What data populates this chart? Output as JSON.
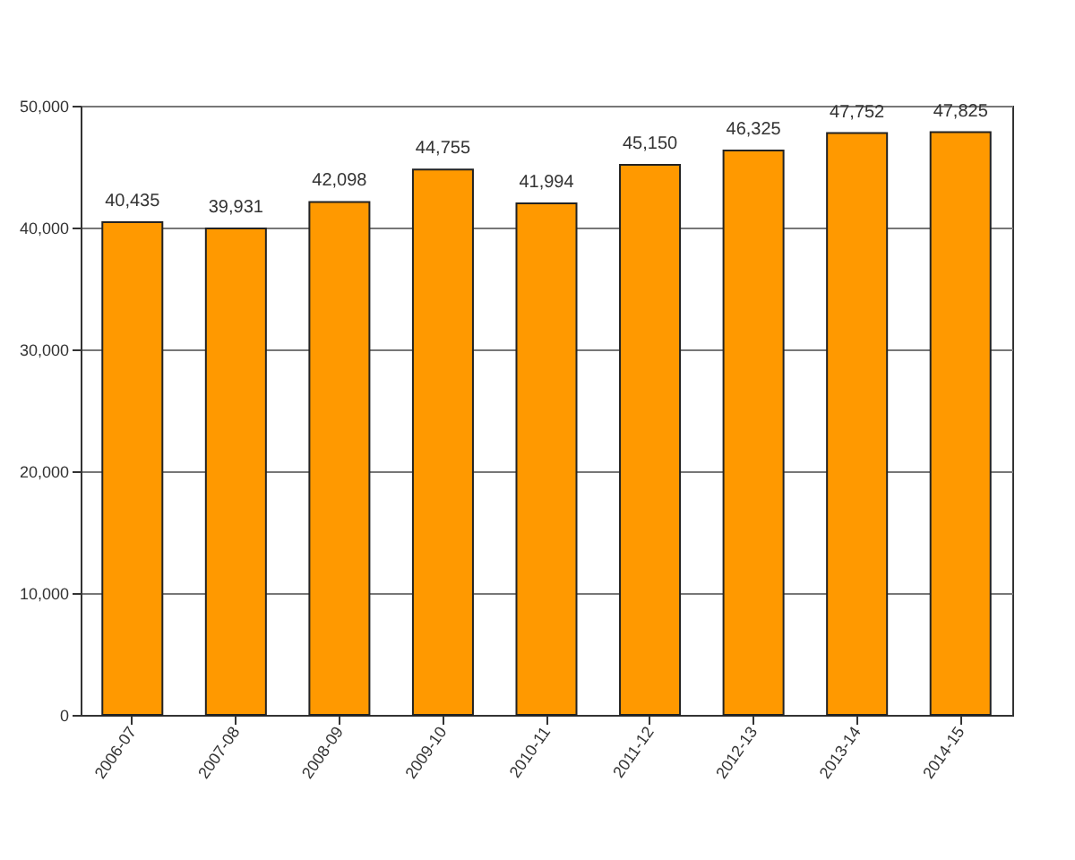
{
  "chart_data": {
    "type": "bar",
    "categories": [
      "2006-07",
      "2007-08",
      "2008-09",
      "2009-10",
      "2010-11",
      "2011-12",
      "2012-13",
      "2013-14",
      "2014-15"
    ],
    "values": [
      40435,
      39931,
      42098,
      44755,
      41994,
      45150,
      46325,
      47752,
      47825
    ],
    "value_labels": [
      "40,435",
      "39,931",
      "42,098",
      "44,755",
      "41,994",
      "45,150",
      "46,325",
      "47,752",
      "47,825"
    ],
    "color": "#ff9900",
    "ylim": [
      0,
      50000
    ],
    "yticks": [
      0,
      {
        "value": 10000,
        "label": "10,000"
      },
      {
        "value": 20000,
        "label": "20,000"
      },
      {
        "value": 30000,
        "label": "30,000"
      },
      {
        "value": 40000,
        "label": "40,000"
      },
      {
        "value": 50000,
        "label": "50,000"
      }
    ],
    "grid": "y"
  }
}
